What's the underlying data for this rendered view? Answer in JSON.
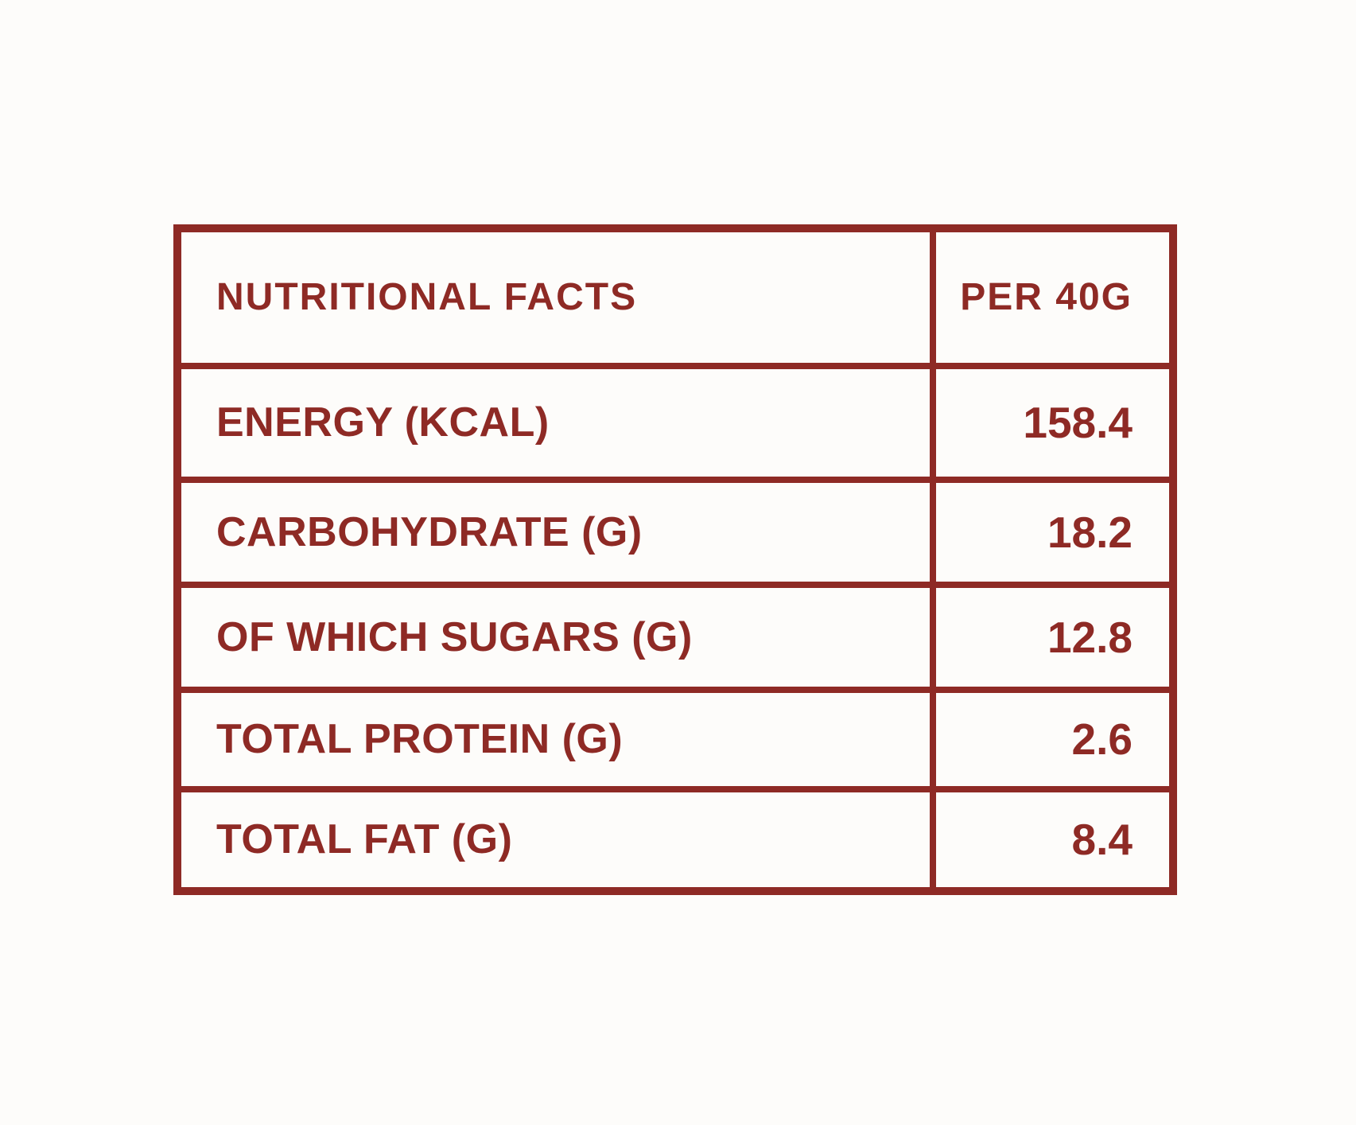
{
  "table": {
    "title": "Nutritional facts table",
    "header": {
      "label": "NUTRITIONAL FACTS",
      "unit": "PER 40G"
    },
    "rows": [
      {
        "label": "ENERGY (KCAL)",
        "value": "158.4"
      },
      {
        "label": "CARBOHYDRATE (G)",
        "value": "18.2"
      },
      {
        "label": "OF WHICH SUGARS (G)",
        "value": "12.8"
      },
      {
        "label": "TOTAL PROTEIN (G)",
        "value": "2.6"
      },
      {
        "label": "TOTAL FAT (G)",
        "value": "8.4"
      }
    ],
    "colors": {
      "accent": "#8e2a25",
      "background": "#fdfcfa"
    }
  }
}
